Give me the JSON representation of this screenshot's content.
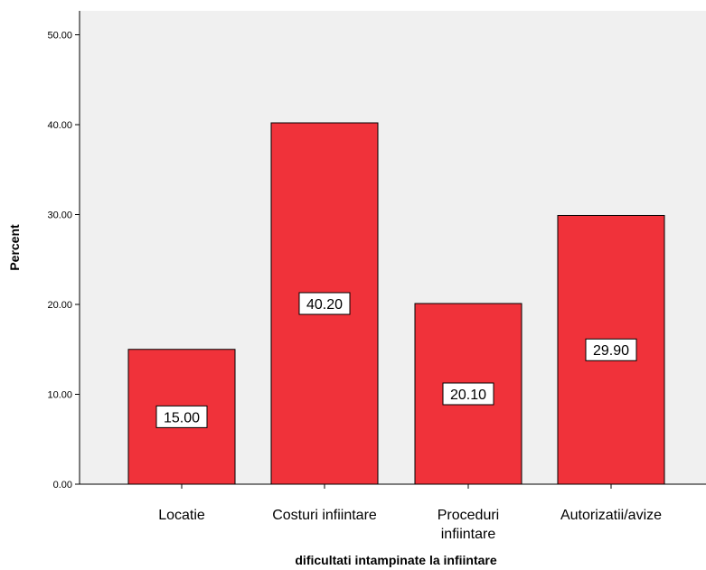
{
  "chart_data": {
    "type": "bar",
    "categories": [
      [
        "Locatie"
      ],
      [
        "Costuri infiintare"
      ],
      [
        "Proceduri",
        "infiintare"
      ],
      [
        "Autorizatii/avize"
      ]
    ],
    "values": [
      15.0,
      40.2,
      20.1,
      29.9
    ],
    "data_labels": [
      "15.00",
      "40.20",
      "20.10",
      "29.90"
    ],
    "xlabel": "dificultati intampinate la infiintare",
    "ylabel": "Percent",
    "ylim": [
      0,
      50
    ],
    "yticks": [
      0,
      10,
      20,
      30,
      40,
      50
    ],
    "ytick_labels": [
      "0.00",
      "10.00",
      "20.00",
      "30.00",
      "40.00",
      "50.00"
    ],
    "grid": false,
    "colors": {
      "bar_fill": "#f0323a",
      "bar_stroke": "#000000",
      "plot_background": "#f0f0f0",
      "label_box": "#ffffff"
    }
  }
}
